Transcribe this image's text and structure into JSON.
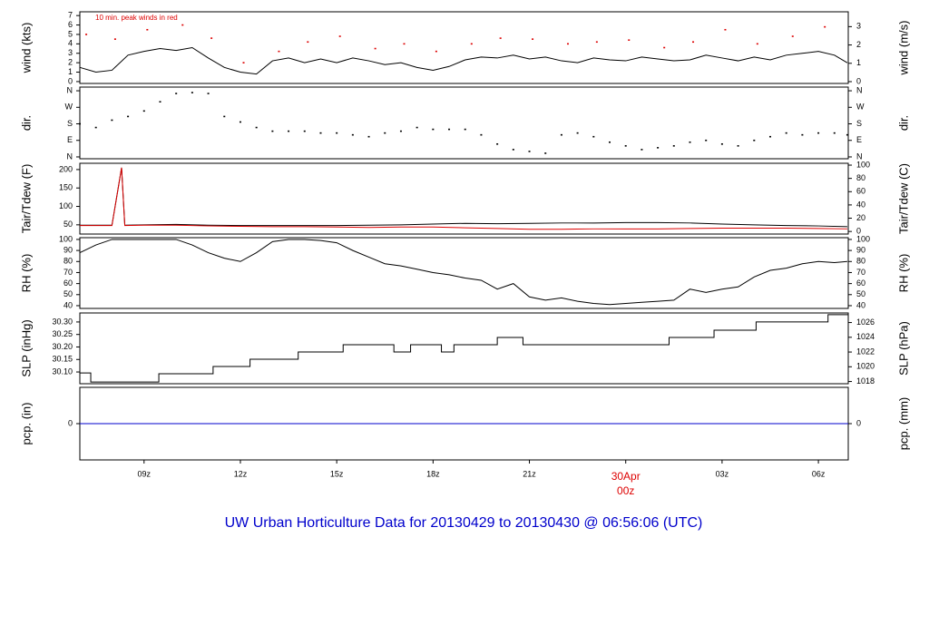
{
  "title": "UW Urban Horticulture Data for 20130429  to  20130430 @ 06:56:06  (UTC)",
  "title_color": "#0000cc",
  "x_axis": {
    "xlim": [
      7,
      30.93
    ],
    "xticks": [
      {
        "value": 9,
        "label": "09z"
      },
      {
        "value": 12,
        "label": "12z"
      },
      {
        "value": 15,
        "label": "15z"
      },
      {
        "value": 18,
        "label": "18z"
      },
      {
        "value": 21,
        "label": "21z"
      },
      {
        "value": 24,
        "label": [
          "30Apr",
          "00z"
        ],
        "color": "#dd0000"
      },
      {
        "value": 27,
        "label": "03z"
      },
      {
        "value": 30,
        "label": "06z"
      }
    ]
  },
  "chart_data": [
    {
      "type": "line",
      "ylabel": "wind (kts)",
      "y2label": "wind (m/s)",
      "annotation": "10 min. peak winds in red",
      "annotation_color": "#dd0000",
      "ylim": [
        -0.2,
        7.4
      ],
      "yticks": [
        0,
        1,
        2,
        3,
        4,
        5,
        6,
        7
      ],
      "y2lim": [
        -0.1,
        3.81
      ],
      "y2ticks": [
        0,
        1,
        2,
        3
      ],
      "series": [
        {
          "type": "line",
          "color": "#000000",
          "x": [
            7,
            7.5,
            8,
            8.5,
            9,
            9.5,
            10,
            10.5,
            11,
            11.5,
            12,
            12.5,
            13,
            13.5,
            14,
            14.5,
            15,
            15.5,
            16,
            16.5,
            17,
            17.5,
            18,
            18.5,
            19,
            19.5,
            20,
            20.5,
            21,
            21.5,
            22,
            22.5,
            23,
            23.5,
            24,
            24.5,
            25,
            25.5,
            26,
            26.5,
            27,
            27.5,
            28,
            28.5,
            29,
            29.5,
            30,
            30.5,
            30.9
          ],
          "values": [
            1.5,
            1,
            1.2,
            2.8,
            3.2,
            3.5,
            3.3,
            3.6,
            2.5,
            1.5,
            1,
            0.8,
            2.2,
            2.5,
            2,
            2.4,
            2,
            2.5,
            2.2,
            1.8,
            2,
            1.5,
            1.2,
            1.6,
            2.3,
            2.6,
            2.5,
            2.8,
            2.4,
            2.6,
            2.2,
            2,
            2.5,
            2.3,
            2.2,
            2.6,
            2.4,
            2.2,
            2.3,
            2.8,
            2.5,
            2.2,
            2.6,
            2.3,
            2.8,
            3,
            3.2,
            2.8,
            2
          ]
        },
        {
          "type": "scatter",
          "color": "#dd0000",
          "x": [
            7.2,
            8.1,
            9.1,
            10.2,
            11.1,
            12.1,
            13.2,
            14.1,
            15.1,
            16.2,
            17.1,
            18.1,
            19.2,
            20.1,
            21.1,
            22.2,
            23.1,
            24.1,
            25.2,
            26.1,
            27.1,
            28.1,
            29.2,
            30.2
          ],
          "values": [
            5,
            4.5,
            5.5,
            6,
            4.6,
            2,
            3.2,
            4.2,
            4.8,
            3.5,
            4,
            3.2,
            4,
            4.6,
            4.5,
            4,
            4.2,
            4.4,
            3.6,
            4.2,
            5.5,
            4,
            4.8,
            5.8
          ]
        }
      ]
    },
    {
      "type": "scatter",
      "ylabel": "dir.",
      "y2label": "dir.",
      "ylim": [
        -10,
        380
      ],
      "yticks": [
        {
          "value": 0,
          "label": "N"
        },
        {
          "value": 90,
          "label": "E"
        },
        {
          "value": 180,
          "label": "S"
        },
        {
          "value": 270,
          "label": "W"
        },
        {
          "value": 360,
          "label": "N"
        }
      ],
      "y2lim": [
        -10,
        380
      ],
      "y2ticks": [
        {
          "value": 0,
          "label": "N"
        },
        {
          "value": 90,
          "label": "E"
        },
        {
          "value": 180,
          "label": "S"
        },
        {
          "value": 270,
          "label": "W"
        },
        {
          "value": 360,
          "label": "N"
        }
      ],
      "series": [
        {
          "type": "scatter",
          "color": "#000000",
          "x": [
            7,
            7.5,
            8,
            8.5,
            9,
            9.5,
            10,
            10.5,
            11,
            11.5,
            12,
            12.5,
            13,
            13.5,
            14,
            14.5,
            15,
            15.5,
            16,
            16.5,
            17,
            17.5,
            18,
            18.5,
            19,
            19.5,
            20,
            20.5,
            21,
            21.5,
            22,
            22.5,
            23,
            23.5,
            24,
            24.5,
            25,
            25.5,
            26,
            26.5,
            27,
            27.5,
            28,
            28.5,
            29,
            29.5,
            30,
            30.5,
            30.9
          ],
          "values": [
            180,
            160,
            200,
            220,
            250,
            300,
            345,
            350,
            345,
            220,
            190,
            160,
            140,
            140,
            140,
            130,
            130,
            120,
            110,
            130,
            140,
            160,
            150,
            150,
            150,
            120,
            70,
            40,
            30,
            20,
            120,
            130,
            110,
            80,
            60,
            40,
            50,
            60,
            80,
            90,
            70,
            60,
            90,
            110,
            130,
            120,
            130,
            130,
            120
          ]
        }
      ]
    },
    {
      "type": "line",
      "ylabel": "Tair/Tdew (F)",
      "y2label": "Tair/Tdew (C)",
      "ylim": [
        25,
        217
      ],
      "yticks": [
        50,
        100,
        150,
        200
      ],
      "y2lim": [
        -3.89,
        102.78
      ],
      "y2ticks": [
        0,
        20,
        40,
        60,
        80,
        100
      ],
      "series": [
        {
          "type": "line",
          "color": "#000000",
          "x": [
            7,
            8,
            8.3,
            8.4,
            9,
            10,
            11,
            12,
            13,
            14,
            15,
            16,
            17,
            18,
            19,
            20,
            21,
            22,
            23,
            24,
            25,
            26,
            27,
            28,
            29,
            30,
            30.9
          ],
          "values": [
            49,
            49,
            205,
            49,
            50,
            51,
            49,
            48,
            48,
            48,
            48,
            49,
            50,
            52,
            54,
            53,
            54,
            55,
            55,
            56,
            56,
            55,
            52,
            50,
            48,
            47,
            45
          ]
        },
        {
          "type": "line",
          "color": "#dd0000",
          "x": [
            7,
            8,
            8.3,
            8.4,
            9,
            10,
            11,
            12,
            13,
            14,
            15,
            16,
            17,
            18,
            19,
            20,
            21,
            22,
            23,
            24,
            25,
            26,
            27,
            28,
            29,
            30,
            30.9
          ],
          "values": [
            48,
            48,
            205,
            48,
            49,
            49,
            47,
            46,
            45,
            45,
            44,
            43,
            44,
            44,
            42,
            40,
            38,
            38,
            39,
            39,
            39,
            40,
            41,
            41,
            41,
            40,
            39
          ]
        }
      ]
    },
    {
      "type": "line",
      "ylabel": "RH (%)",
      "y2label": "RH (%)",
      "ylim": [
        37.5,
        101.6
      ],
      "yticks": [
        40,
        50,
        60,
        70,
        80,
        90,
        100
      ],
      "y2lim": [
        37.5,
        101.6
      ],
      "y2ticks": [
        40,
        50,
        60,
        70,
        80,
        90,
        100
      ],
      "series": [
        {
          "type": "line",
          "color": "#000000",
          "x": [
            7,
            7.5,
            8,
            8.5,
            9,
            9.5,
            10,
            10.5,
            11,
            11.5,
            12,
            12.5,
            13,
            13.5,
            14,
            14.5,
            15,
            15.5,
            16,
            16.5,
            17,
            17.5,
            18,
            18.5,
            19,
            19.5,
            20,
            20.5,
            21,
            21.5,
            22,
            22.5,
            23,
            23.5,
            24,
            24.5,
            25,
            25.5,
            26,
            26.5,
            27,
            27.5,
            28,
            28.5,
            29,
            29.5,
            30,
            30.5,
            30.9
          ],
          "values": [
            88,
            95,
            100,
            100,
            100,
            100,
            100,
            95,
            88,
            83,
            80,
            88,
            98,
            100,
            100,
            99,
            97,
            90,
            84,
            78,
            76,
            73,
            70,
            68,
            65,
            63,
            55,
            60,
            48,
            45,
            47,
            44,
            42,
            41,
            42,
            43,
            44,
            45,
            55,
            52,
            55,
            57,
            66,
            72,
            74,
            78,
            80,
            79,
            80
          ]
        }
      ]
    },
    {
      "type": "line",
      "ylabel": "SLP (inHg)",
      "y2label": "SLP (hPa)",
      "ylim": [
        30.053,
        30.336
      ],
      "yticks": [
        {
          "value": 30.1,
          "label": "30.10"
        },
        30.15,
        {
          "value": 30.2,
          "label": "30.20"
        },
        30.25,
        {
          "value": 30.3,
          "label": "30.30"
        }
      ],
      "y2lim": [
        1017.7,
        1027.3
      ],
      "y2ticks": [
        1018,
        1020,
        1022,
        1024,
        1026
      ],
      "series": [
        {
          "type": "step",
          "color": "#000000",
          "x": [
            7,
            7.34,
            9.46,
            11.15,
            12.3,
            13.8,
            15.2,
            16.78,
            17.3,
            18.26,
            18.65,
            20,
            20.8,
            25.35,
            26.75,
            28.06,
            30.3
          ],
          "values": [
            30.096,
            30.06,
            30.093,
            30.122,
            30.151,
            30.18,
            30.209,
            30.18,
            30.209,
            30.18,
            30.209,
            30.238,
            30.209,
            30.238,
            30.267,
            30.3,
            30.329
          ]
        }
      ]
    },
    {
      "type": "line",
      "ylabel": "pcp. (in)",
      "y2label": "pcp. (mm)",
      "ylim": [
        -1,
        1
      ],
      "yticks": [
        0
      ],
      "y2lim": [
        -1,
        1
      ],
      "y2ticks": [
        0
      ],
      "series": [
        {
          "type": "line",
          "color": "#0000cc",
          "x": [
            7,
            30.93
          ],
          "values": [
            0,
            0
          ]
        }
      ]
    }
  ]
}
